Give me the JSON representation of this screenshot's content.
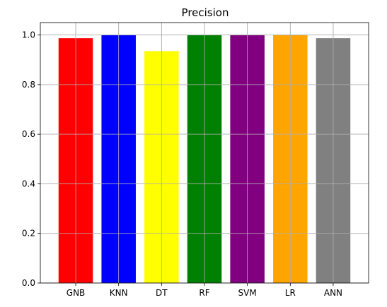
{
  "chart_data": {
    "type": "bar",
    "title": "Precision",
    "xlabel": "",
    "ylabel": "",
    "categories": [
      "GNB",
      "KNN",
      "DT",
      "RF",
      "SVM",
      "LR",
      "ANN"
    ],
    "values": [
      0.987,
      1.0,
      0.935,
      1.0,
      1.0,
      1.0,
      0.987
    ],
    "colors": [
      "#ff0000",
      "#0000ff",
      "#ffff00",
      "#008000",
      "#800080",
      "#ffa500",
      "#808080"
    ],
    "ylim": [
      0,
      1.05
    ],
    "yticks": [
      "0.0",
      "0.2",
      "0.4",
      "0.6",
      "0.8",
      "1.0"
    ],
    "grid": true,
    "legend": "none"
  }
}
